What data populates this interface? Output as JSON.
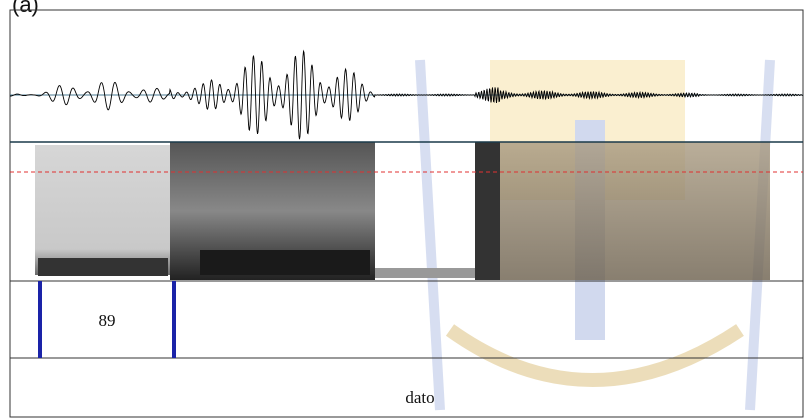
{
  "figure_label": "(a)",
  "tiers": [
    {
      "intervals": [
        {
          "label": "89"
        }
      ]
    },
    {
      "intervals": [
        {
          "label": "dato"
        }
      ]
    }
  ]
}
